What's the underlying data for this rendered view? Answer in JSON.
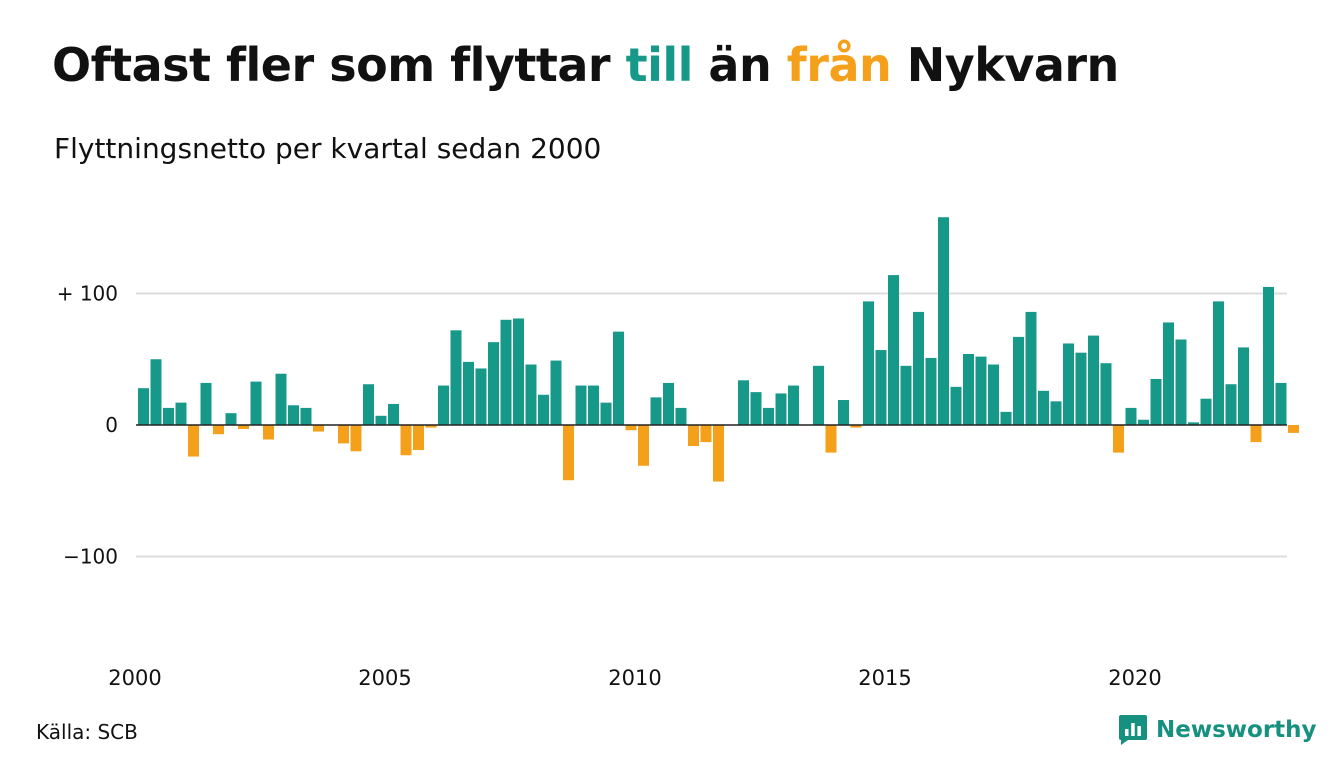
{
  "title": {
    "prefix": "Oftast fler som flyttar ",
    "till": "till",
    "middle": " än ",
    "fran": "från",
    "suffix": " Nykvarn"
  },
  "subtitle": "Flyttningsnetto per kvartal sedan 2000",
  "source": "Källa: SCB",
  "brand": "Newsworthy",
  "colors": {
    "positive": "#17998a",
    "negative": "#f5a01a",
    "grid": "#dddddd",
    "text": "#111111",
    "brand": "#16907f"
  },
  "icons": {
    "logo": "newsworthy-logo-icon"
  },
  "chart_data": {
    "type": "bar",
    "title": "Oftast fler som flyttar till än från Nykvarn",
    "subtitle": "Flyttningsnetto per kvartal sedan 2000",
    "x_start_year": 2000,
    "periods_per_year": 4,
    "ylim": [
      -160,
      160
    ],
    "yticks": [
      {
        "value": 100,
        "label": "+ 100"
      },
      {
        "value": 0,
        "label": "0"
      },
      {
        "value": -100,
        "label": "−100"
      }
    ],
    "xticks": [
      {
        "value": 2000,
        "label": "2000"
      },
      {
        "value": 2005,
        "label": "2005"
      },
      {
        "value": 2010,
        "label": "2010"
      },
      {
        "value": 2015,
        "label": "2015"
      },
      {
        "value": 2020,
        "label": "2020"
      }
    ],
    "grid": true,
    "values": [
      28,
      50,
      13,
      17,
      -24,
      32,
      -7,
      9,
      -3,
      33,
      -11,
      39,
      15,
      13,
      -5,
      0,
      -14,
      -20,
      31,
      7,
      16,
      -23,
      -19,
      -2,
      30,
      72,
      48,
      43,
      63,
      80,
      81,
      46,
      23,
      49,
      -42,
      30,
      30,
      17,
      71,
      -4,
      -31,
      21,
      32,
      13,
      -16,
      -13,
      -43,
      0,
      34,
      25,
      13,
      24,
      30,
      0,
      45,
      -21,
      19,
      -2,
      94,
      57,
      114,
      45,
      86,
      51,
      158,
      29,
      54,
      52,
      46,
      10,
      67,
      86,
      26,
      18,
      62,
      55,
      68,
      47,
      -21,
      13,
      4,
      35,
      78,
      65,
      2,
      20,
      94,
      31,
      59,
      -13,
      105,
      32,
      -6
    ]
  }
}
